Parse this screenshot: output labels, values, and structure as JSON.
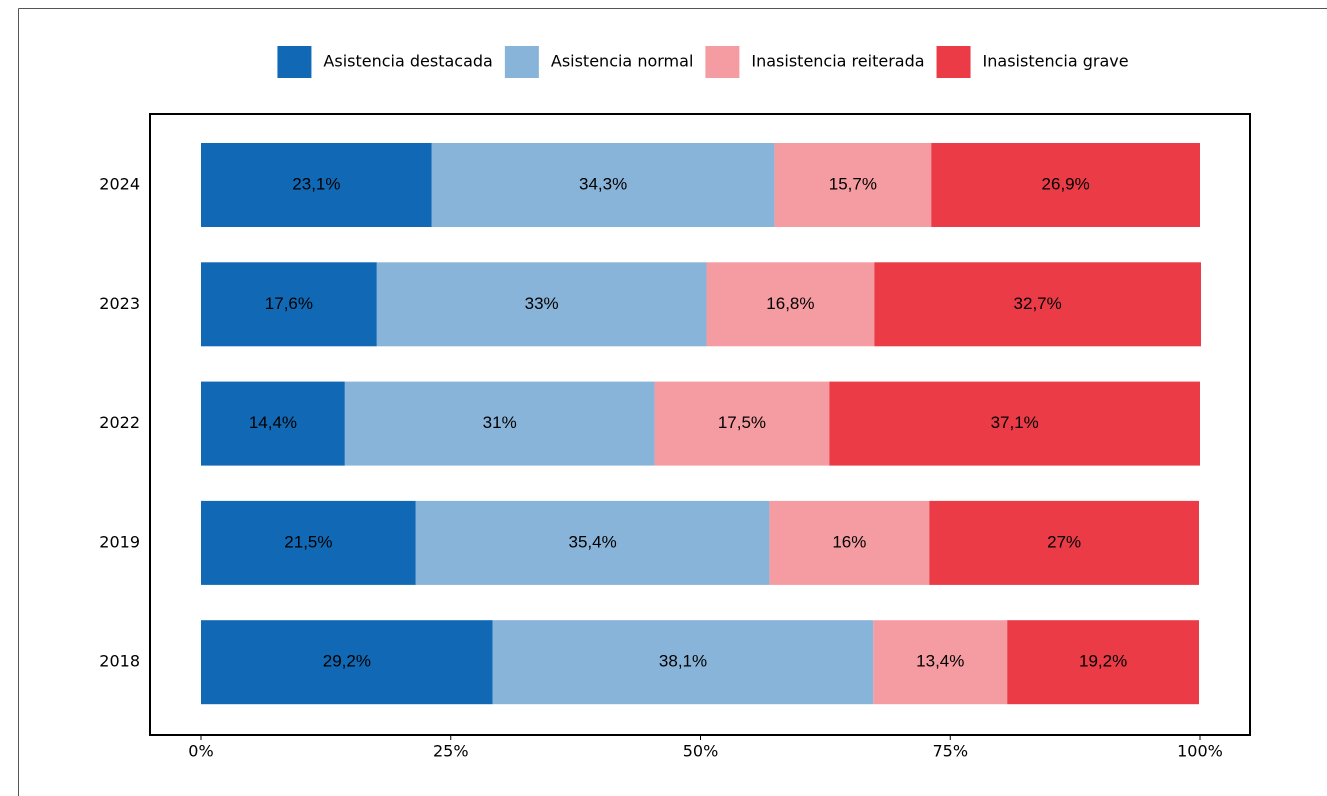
{
  "chart_data": {
    "type": "stacked-bar-horizontal",
    "categories": [
      "2024",
      "2023",
      "2022",
      "2019",
      "2018"
    ],
    "series": [
      {
        "name": "Asistencia destacada",
        "color": "#1169b5",
        "values": [
          23.1,
          17.6,
          14.4,
          21.5,
          29.2
        ],
        "value_labels": [
          "23,1%",
          "17,6%",
          "14,4%",
          "21,5%",
          "29,2%"
        ]
      },
      {
        "name": "Asistencia normal",
        "color": "#89b4d9",
        "values": [
          34.3,
          33,
          31,
          35.4,
          38.1
        ],
        "value_labels": [
          "34,3%",
          "33%",
          "31%",
          "35,4%",
          "38,1%"
        ]
      },
      {
        "name": "Inasistencia reiterada",
        "color": "#f59ca2",
        "values": [
          15.7,
          16.8,
          17.5,
          16,
          13.4
        ],
        "value_labels": [
          "15,7%",
          "16,8%",
          "17,5%",
          "16%",
          "13,4%"
        ]
      },
      {
        "name": "Inasistencia grave",
        "color": "#ea3b46",
        "values": [
          26.9,
          32.7,
          37.1,
          27,
          19.2
        ],
        "value_labels": [
          "26,9%",
          "32,7%",
          "37,1%",
          "27%",
          "19,2%"
        ]
      }
    ],
    "xlim": [
      0,
      100
    ],
    "xticks": [
      {
        "value": 0,
        "label": "0%"
      },
      {
        "value": 25,
        "label": "25%"
      },
      {
        "value": 50,
        "label": "50%"
      },
      {
        "value": 75,
        "label": "75%"
      },
      {
        "value": 100,
        "label": "100%"
      }
    ],
    "legend": "top"
  }
}
